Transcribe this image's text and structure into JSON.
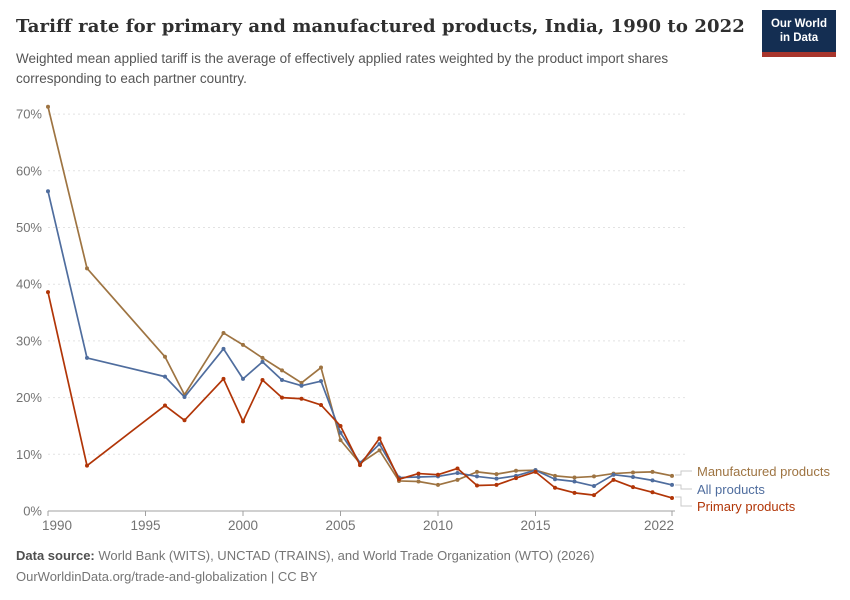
{
  "header": {
    "title": "Tariff rate for primary and manufactured products, India, 1990 to 2022",
    "subtitle": "Weighted mean applied tariff is the average of effectively applied rates weighted by the product import shares corresponding to each partner country.",
    "logo_line1": "Our World",
    "logo_line2": "in Data"
  },
  "colors": {
    "manufactured": "#9e7442",
    "all_products": "#4f6d9e",
    "primary": "#b13507",
    "grid": "#e2e2e2",
    "axis": "#a0a0a0",
    "tick_text": "#737373",
    "connector": "#c9c9c9",
    "logo_bg": "#142e52",
    "logo_stripe": "#a8352c"
  },
  "chart_data": {
    "type": "line",
    "x": [
      1990,
      1992,
      1996,
      1997,
      1999,
      2000,
      2001,
      2002,
      2003,
      2004,
      2005,
      2006,
      2007,
      2008,
      2009,
      2010,
      2011,
      2012,
      2013,
      2014,
      2015,
      2016,
      2017,
      2018,
      2019,
      2020,
      2021,
      2022
    ],
    "series": [
      {
        "name": "Manufactured products",
        "color": "#9e7442",
        "values": [
          71.3,
          42.8,
          27.2,
          20.5,
          31.4,
          29.3,
          27.0,
          24.8,
          22.6,
          25.3,
          12.5,
          8.4,
          10.7,
          5.3,
          5.2,
          4.6,
          5.5,
          6.9,
          6.5,
          7.1,
          7.2,
          6.2,
          5.9,
          6.1,
          6.6,
          6.8,
          6.9,
          6.2
        ]
      },
      {
        "name": "All products",
        "color": "#4f6d9e",
        "values": [
          56.4,
          27.0,
          23.7,
          20.1,
          28.6,
          23.3,
          26.3,
          23.1,
          22.1,
          22.9,
          13.8,
          8.5,
          11.8,
          5.9,
          6.0,
          6.1,
          6.7,
          6.1,
          5.7,
          6.2,
          7.2,
          5.6,
          5.2,
          4.4,
          6.4,
          6.0,
          5.4,
          4.6
        ]
      },
      {
        "name": "Primary products",
        "color": "#b13507",
        "values": [
          38.6,
          8.0,
          18.6,
          16.0,
          23.3,
          15.8,
          23.1,
          20.0,
          19.8,
          18.7,
          15.0,
          8.1,
          12.8,
          5.6,
          6.6,
          6.4,
          7.5,
          4.5,
          4.6,
          5.8,
          6.9,
          4.1,
          3.2,
          2.8,
          5.5,
          4.2,
          3.3,
          2.3
        ]
      }
    ],
    "title": "Tariff rate for primary and manufactured products, India, 1990 to 2022",
    "xlabel": "",
    "ylabel": "",
    "ylim": [
      0,
      72
    ],
    "yticks": [
      0,
      10,
      20,
      30,
      40,
      50,
      60,
      70
    ],
    "ytick_suffix": "%",
    "xticks": [
      1990,
      1995,
      2000,
      2005,
      2010,
      2015,
      2022
    ],
    "grid": "horizontal-dashed",
    "legend_position": "right"
  },
  "legend": {
    "manufactured_label": "Manufactured products",
    "all_label": "All products",
    "primary_label": "Primary products"
  },
  "footer": {
    "source_label": "Data source:",
    "source_text": " World Bank (WITS), UNCTAD (TRAINS), and World Trade Organization (WTO) (2026)",
    "license_line": "OurWorldinData.org/trade-and-globalization | CC BY"
  }
}
